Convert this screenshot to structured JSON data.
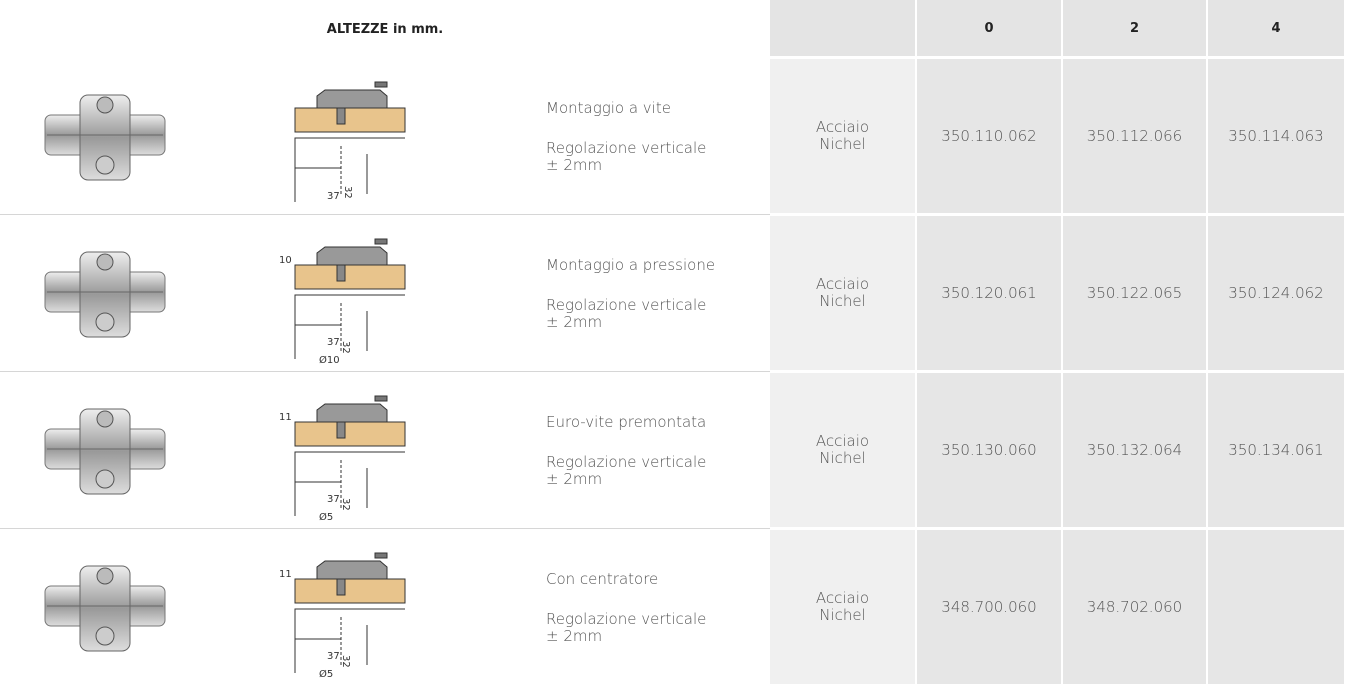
{
  "header": {
    "title": "ALTEZZE in mm.",
    "columns": [
      "0",
      "2",
      "4"
    ]
  },
  "table": {
    "rows": [
      {
        "mount": "Montaggio a vite",
        "adjust": "Regolazione verticale",
        "range": "± 2mm",
        "material": [
          "Acciaio",
          "Nichel"
        ],
        "codes": [
          "350.110.062",
          "350.112.066",
          "350.114.063"
        ],
        "dims": [
          "37",
          "32"
        ]
      },
      {
        "mount": "Montaggio a pressione",
        "adjust": "Regolazione verticale",
        "range": "± 2mm",
        "material": [
          "Acciaio",
          "Nichel"
        ],
        "codes": [
          "350.120.061",
          "350.122.065",
          "350.124.062"
        ],
        "dims": [
          "10",
          "37",
          "Ø10",
          "32"
        ]
      },
      {
        "mount": "Euro-vite premontata",
        "adjust": "Regolazione verticale",
        "range": "± 2mm",
        "material": [
          "Acciaio",
          "Nichel"
        ],
        "codes": [
          "350.130.060",
          "350.132.064",
          "350.134.061"
        ],
        "dims": [
          "11",
          "37",
          "Ø5",
          "32"
        ]
      },
      {
        "mount": "Con centratore",
        "adjust": "Regolazione verticale",
        "range": "± 2mm",
        "material": [
          "Acciaio",
          "Nichel"
        ],
        "codes": [
          "348.700.060",
          "348.702.060"
        ],
        "dims": [
          "11",
          "37",
          "Ø5",
          "32"
        ]
      }
    ]
  }
}
